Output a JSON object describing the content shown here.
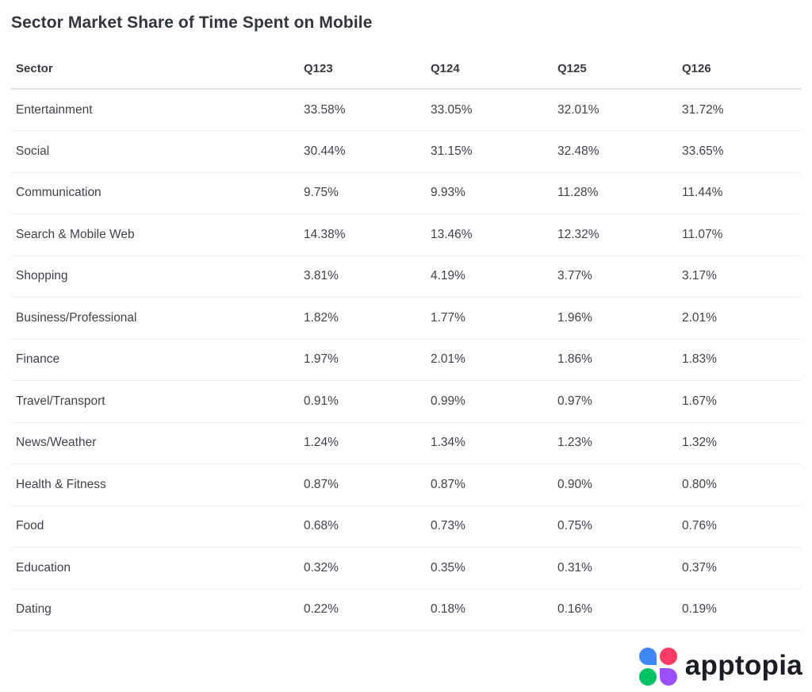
{
  "title": "Sector Market Share of Time Spent on Mobile",
  "table": {
    "columns": [
      "Sector",
      "Q123",
      "Q124",
      "Q125",
      "Q126"
    ],
    "rows": [
      {
        "sector": "Entertainment",
        "values": [
          "33.58%",
          "33.05%",
          "32.01%",
          "31.72%"
        ]
      },
      {
        "sector": "Social",
        "values": [
          "30.44%",
          "31.15%",
          "32.48%",
          "33.65%"
        ]
      },
      {
        "sector": "Communication",
        "values": [
          "9.75%",
          "9.93%",
          "11.28%",
          "11.44%"
        ]
      },
      {
        "sector": "Search & Mobile Web",
        "values": [
          "14.38%",
          "13.46%",
          "12.32%",
          "11.07%"
        ]
      },
      {
        "sector": "Shopping",
        "values": [
          "3.81%",
          "4.19%",
          "3.77%",
          "3.17%"
        ]
      },
      {
        "sector": "Business/Professional",
        "values": [
          "1.82%",
          "1.77%",
          "1.96%",
          "2.01%"
        ]
      },
      {
        "sector": "Finance",
        "values": [
          "1.97%",
          "2.01%",
          "1.86%",
          "1.83%"
        ]
      },
      {
        "sector": "Travel/Transport",
        "values": [
          "0.91%",
          "0.99%",
          "0.97%",
          "1.67%"
        ]
      },
      {
        "sector": "News/Weather",
        "values": [
          "1.24%",
          "1.34%",
          "1.23%",
          "1.32%"
        ]
      },
      {
        "sector": "Health & Fitness",
        "values": [
          "0.87%",
          "0.87%",
          "0.90%",
          "0.80%"
        ]
      },
      {
        "sector": "Food",
        "values": [
          "0.68%",
          "0.73%",
          "0.75%",
          "0.76%"
        ]
      },
      {
        "sector": "Education",
        "values": [
          "0.32%",
          "0.35%",
          "0.31%",
          "0.37%"
        ]
      },
      {
        "sector": "Dating",
        "values": [
          "0.22%",
          "0.18%",
          "0.16%",
          "0.19%"
        ]
      }
    ]
  },
  "chart_data": {
    "type": "table",
    "title": "Sector Market Share of Time Spent on Mobile",
    "categories": [
      "Q123",
      "Q124",
      "Q125",
      "Q126"
    ],
    "unit": "percent",
    "series": [
      {
        "name": "Entertainment",
        "values": [
          33.58,
          33.05,
          32.01,
          31.72
        ]
      },
      {
        "name": "Social",
        "values": [
          30.44,
          31.15,
          32.48,
          33.65
        ]
      },
      {
        "name": "Communication",
        "values": [
          9.75,
          9.93,
          11.28,
          11.44
        ]
      },
      {
        "name": "Search & Mobile Web",
        "values": [
          14.38,
          13.46,
          12.32,
          11.07
        ]
      },
      {
        "name": "Shopping",
        "values": [
          3.81,
          4.19,
          3.77,
          3.17
        ]
      },
      {
        "name": "Business/Professional",
        "values": [
          1.82,
          1.77,
          1.96,
          2.01
        ]
      },
      {
        "name": "Finance",
        "values": [
          1.97,
          2.01,
          1.86,
          1.83
        ]
      },
      {
        "name": "Travel/Transport",
        "values": [
          0.91,
          0.99,
          0.97,
          1.67
        ]
      },
      {
        "name": "News/Weather",
        "values": [
          1.24,
          1.34,
          1.23,
          1.32
        ]
      },
      {
        "name": "Health & Fitness",
        "values": [
          0.87,
          0.87,
          0.9,
          0.8
        ]
      },
      {
        "name": "Food",
        "values": [
          0.68,
          0.73,
          0.75,
          0.76
        ]
      },
      {
        "name": "Education",
        "values": [
          0.32,
          0.35,
          0.31,
          0.37
        ]
      },
      {
        "name": "Dating",
        "values": [
          0.22,
          0.18,
          0.16,
          0.19
        ]
      }
    ]
  },
  "footer": {
    "brand": "apptopia",
    "logo_colors": {
      "blue": "#4186f5",
      "pink": "#fb3c64",
      "green": "#00c464",
      "purple": "#9c4fff"
    }
  }
}
